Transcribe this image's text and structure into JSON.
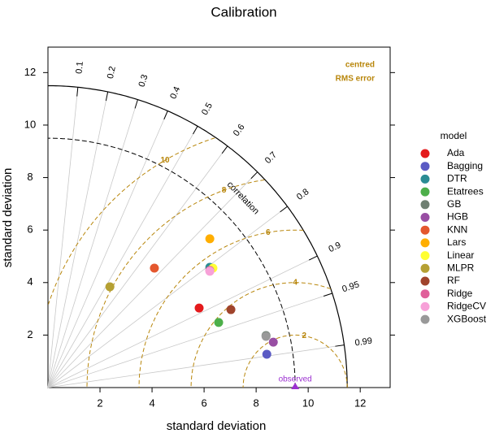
{
  "chart_data": {
    "type": "taylor",
    "title": "Calibration",
    "x_label": "standard deviation",
    "y_label": "standard deviation",
    "xlim": [
      0,
      13.15
    ],
    "ylim": [
      0,
      12.97
    ],
    "xticks": [
      2,
      4,
      6,
      8,
      10,
      12
    ],
    "yticks": [
      2,
      4,
      6,
      8,
      10,
      12
    ],
    "rlim": [
      0,
      11.5
    ],
    "correlation_label": "correlation",
    "correlations": [
      0.1,
      0.2,
      0.3,
      0.4,
      0.5,
      0.6,
      0.7,
      0.8,
      0.9,
      0.95,
      0.99
    ],
    "rms_label": [
      "centred",
      "RMS error"
    ],
    "rms_levels": [
      2,
      4,
      6,
      8,
      10
    ],
    "observed": {
      "label": "observed",
      "sd": 9.5
    },
    "legend_title": "model",
    "series": [
      {
        "name": "Ada",
        "color": "#e41a1c",
        "x": [
          5.81
        ],
        "values": [
          3.03
        ]
      },
      {
        "name": "Bagging",
        "color": "#5b5bc4",
        "x": [
          8.41
        ],
        "values": [
          1.27
        ]
      },
      {
        "name": "DTR",
        "color": "#2b8c94",
        "x": [
          6.22
        ],
        "values": [
          4.58
        ]
      },
      {
        "name": "Etatrees",
        "color": "#4daf4a",
        "x": [
          6.56
        ],
        "values": [
          2.48
        ]
      },
      {
        "name": "GB",
        "color": "#6f7f72",
        "x": [
          8.38
        ],
        "values": [
          1.98
        ]
      },
      {
        "name": "HGB",
        "color": "#984ea3",
        "x": [
          8.66
        ],
        "values": [
          1.73
        ]
      },
      {
        "name": "KNN",
        "color": "#e4572e",
        "x": [
          4.09
        ],
        "values": [
          4.55
        ]
      },
      {
        "name": "Lars",
        "color": "#ffae00",
        "x": [
          6.22
        ],
        "values": [
          5.67
        ]
      },
      {
        "name": "Linear",
        "color": "#ffff33",
        "x": [
          6.34
        ],
        "values": [
          4.55
        ]
      },
      {
        "name": "MLPR",
        "color": "#b5a033",
        "x": [
          2.38
        ],
        "values": [
          3.84
        ]
      },
      {
        "name": "RF",
        "color": "#a0442c",
        "x": [
          7.03
        ],
        "values": [
          2.97
        ]
      },
      {
        "name": "Ridge",
        "color": "#e0609a",
        "x": [
          6.22
        ],
        "values": [
          4.46
        ]
      },
      {
        "name": "RidgeCV",
        "color": "#f7a1d8",
        "x": [
          6.22
        ],
        "values": [
          4.43
        ]
      },
      {
        "name": "XGBoost",
        "color": "#999999",
        "x": [
          8.38
        ],
        "values": [
          1.95
        ]
      }
    ]
  }
}
